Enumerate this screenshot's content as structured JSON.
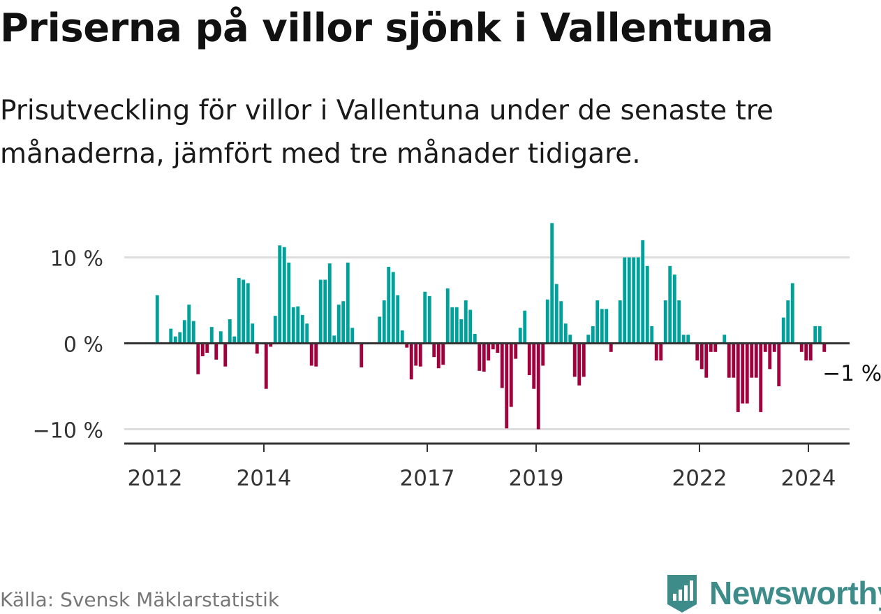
{
  "title": "Priserna på villor sjönk i Vallentuna",
  "subtitle": "Prisutveckling för villor i Vallentuna under de senaste tre månaderna, jämfört med tre månader tidigare.",
  "source": "Källa: Svensk Mäklarstatistik",
  "brand": "Newsworthy",
  "colors": {
    "positive": "#00a19a",
    "negative": "#a0003c",
    "grid": "#dddddd",
    "axis": "#333333",
    "brand": "#3e8c8a"
  },
  "chart_data": {
    "type": "bar",
    "title": "Priserna på villor sjönk i Vallentuna",
    "xlabel": "",
    "ylabel": "",
    "unit": "%",
    "ylim": [
      -11,
      14.5
    ],
    "grid": true,
    "y_ticks": [
      {
        "value": 10,
        "label": "10 %"
      },
      {
        "value": 0,
        "label": "0 %"
      },
      {
        "value": -10,
        "label": "−10 %"
      }
    ],
    "x_ticks": [
      {
        "value": 2012.0,
        "label": "2012"
      },
      {
        "value": 2014.0,
        "label": "2014"
      },
      {
        "value": 2017.0,
        "label": "2017"
      },
      {
        "value": 2019.0,
        "label": "2019"
      },
      {
        "value": 2022.0,
        "label": "2022"
      },
      {
        "value": 2024.0,
        "label": "2024"
      }
    ],
    "x_start": 2012.0,
    "period": "month",
    "last_value_label": "−1 %",
    "values": [
      5.6,
      null,
      null,
      1.7,
      0.8,
      1.3,
      2.7,
      4.5,
      2.6,
      -3.6,
      -1.5,
      -1.1,
      1.9,
      -1.9,
      1.4,
      -2.7,
      2.8,
      0.8,
      7.6,
      7.4,
      7.0,
      2.3,
      -1.2,
      null,
      -5.3,
      -0.4,
      3.2,
      11.4,
      11.2,
      9.4,
      4.2,
      4.3,
      3.3,
      2.3,
      -2.6,
      -2.7,
      7.4,
      7.4,
      9.3,
      0.9,
      4.5,
      4.9,
      9.4,
      1.8,
      null,
      -2.8,
      null,
      null,
      null,
      3.1,
      5.0,
      8.9,
      8.3,
      5.6,
      1.5,
      -0.5,
      -4.2,
      -2.6,
      -2.7,
      6.0,
      5.5,
      -1.6,
      -2.9,
      -2.5,
      6.4,
      4.2,
      4.2,
      2.8,
      5.0,
      3.9,
      1.1,
      -3.2,
      -3.3,
      -2.0,
      -0.7,
      -1.1,
      -5.2,
      -9.9,
      -7.4,
      -1.8,
      1.8,
      3.8,
      -3.7,
      -5.3,
      -10.0,
      -2.6,
      5.1,
      14.0,
      6.9,
      4.9,
      2.3,
      1.0,
      -3.9,
      -4.9,
      -3.9,
      1.0,
      2.0,
      5.0,
      4.0,
      4.0,
      -1.0,
      null,
      5.0,
      10.0,
      10.0,
      10.0,
      10.0,
      12.0,
      9.0,
      2.0,
      -2.0,
      -2.0,
      5.0,
      9.0,
      8.0,
      5.0,
      1.0,
      1.0,
      null,
      -2.0,
      -3.0,
      -4.0,
      -1.0,
      -1.0,
      null,
      1.0,
      -4.0,
      -4.0,
      -8.0,
      -7.0,
      -7.0,
      -4.0,
      -4.0,
      -8.0,
      -1.0,
      -3.0,
      -1.0,
      -5.0,
      3.0,
      5.0,
      7.0,
      null,
      -1.0,
      -2.0,
      -2.0,
      2.0,
      2.0,
      -1.0
    ]
  }
}
